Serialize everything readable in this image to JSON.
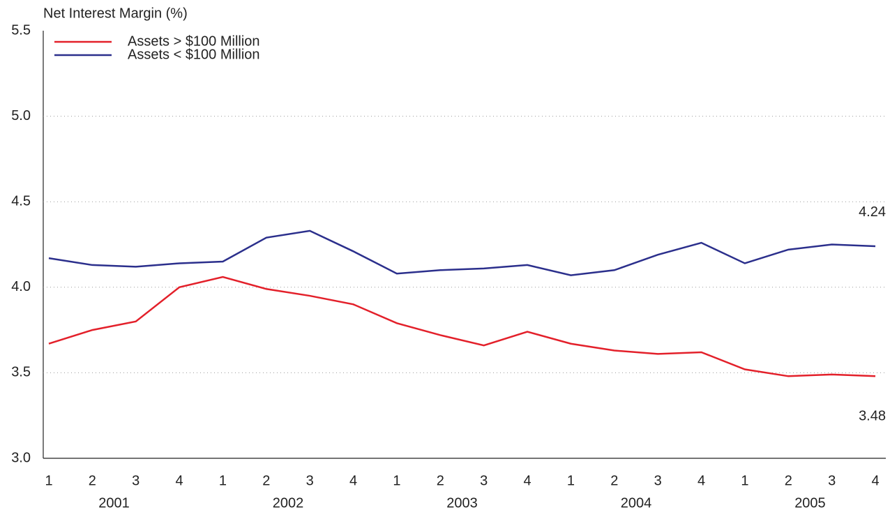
{
  "chart_data": {
    "type": "line",
    "y_label": "Net Interest Margin (%)",
    "categories": [
      "1",
      "2",
      "3",
      "4",
      "1",
      "2",
      "3",
      "4",
      "1",
      "2",
      "3",
      "4",
      "1",
      "2",
      "3",
      "4",
      "1",
      "2",
      "3",
      "4"
    ],
    "x_groups": [
      "2001",
      "2002",
      "2003",
      "2004",
      "2005"
    ],
    "series": [
      {
        "name": "Assets > $100 Million",
        "color": "#e3202a",
        "values": [
          3.67,
          3.75,
          3.8,
          4.0,
          4.06,
          3.99,
          3.95,
          3.9,
          3.79,
          3.72,
          3.66,
          3.74,
          3.67,
          3.63,
          3.61,
          3.62,
          3.52,
          3.48,
          3.49,
          3.48
        ]
      },
      {
        "name": "Assets < $100 Million",
        "color": "#2b2f8c",
        "values": [
          4.17,
          4.13,
          4.12,
          4.14,
          4.15,
          4.29,
          4.33,
          4.21,
          4.08,
          4.1,
          4.11,
          4.13,
          4.07,
          4.1,
          4.19,
          4.26,
          4.14,
          4.22,
          4.25,
          4.24
        ]
      }
    ],
    "ylim": [
      3.0,
      5.5
    ],
    "yticks": [
      {
        "value": 3,
        "label": "3.0"
      },
      3.5,
      {
        "value": 4,
        "label": "4.0"
      },
      4.5,
      {
        "value": 5,
        "label": "5.0"
      },
      5.5
    ],
    "grid": true,
    "legend": "upper left"
  }
}
